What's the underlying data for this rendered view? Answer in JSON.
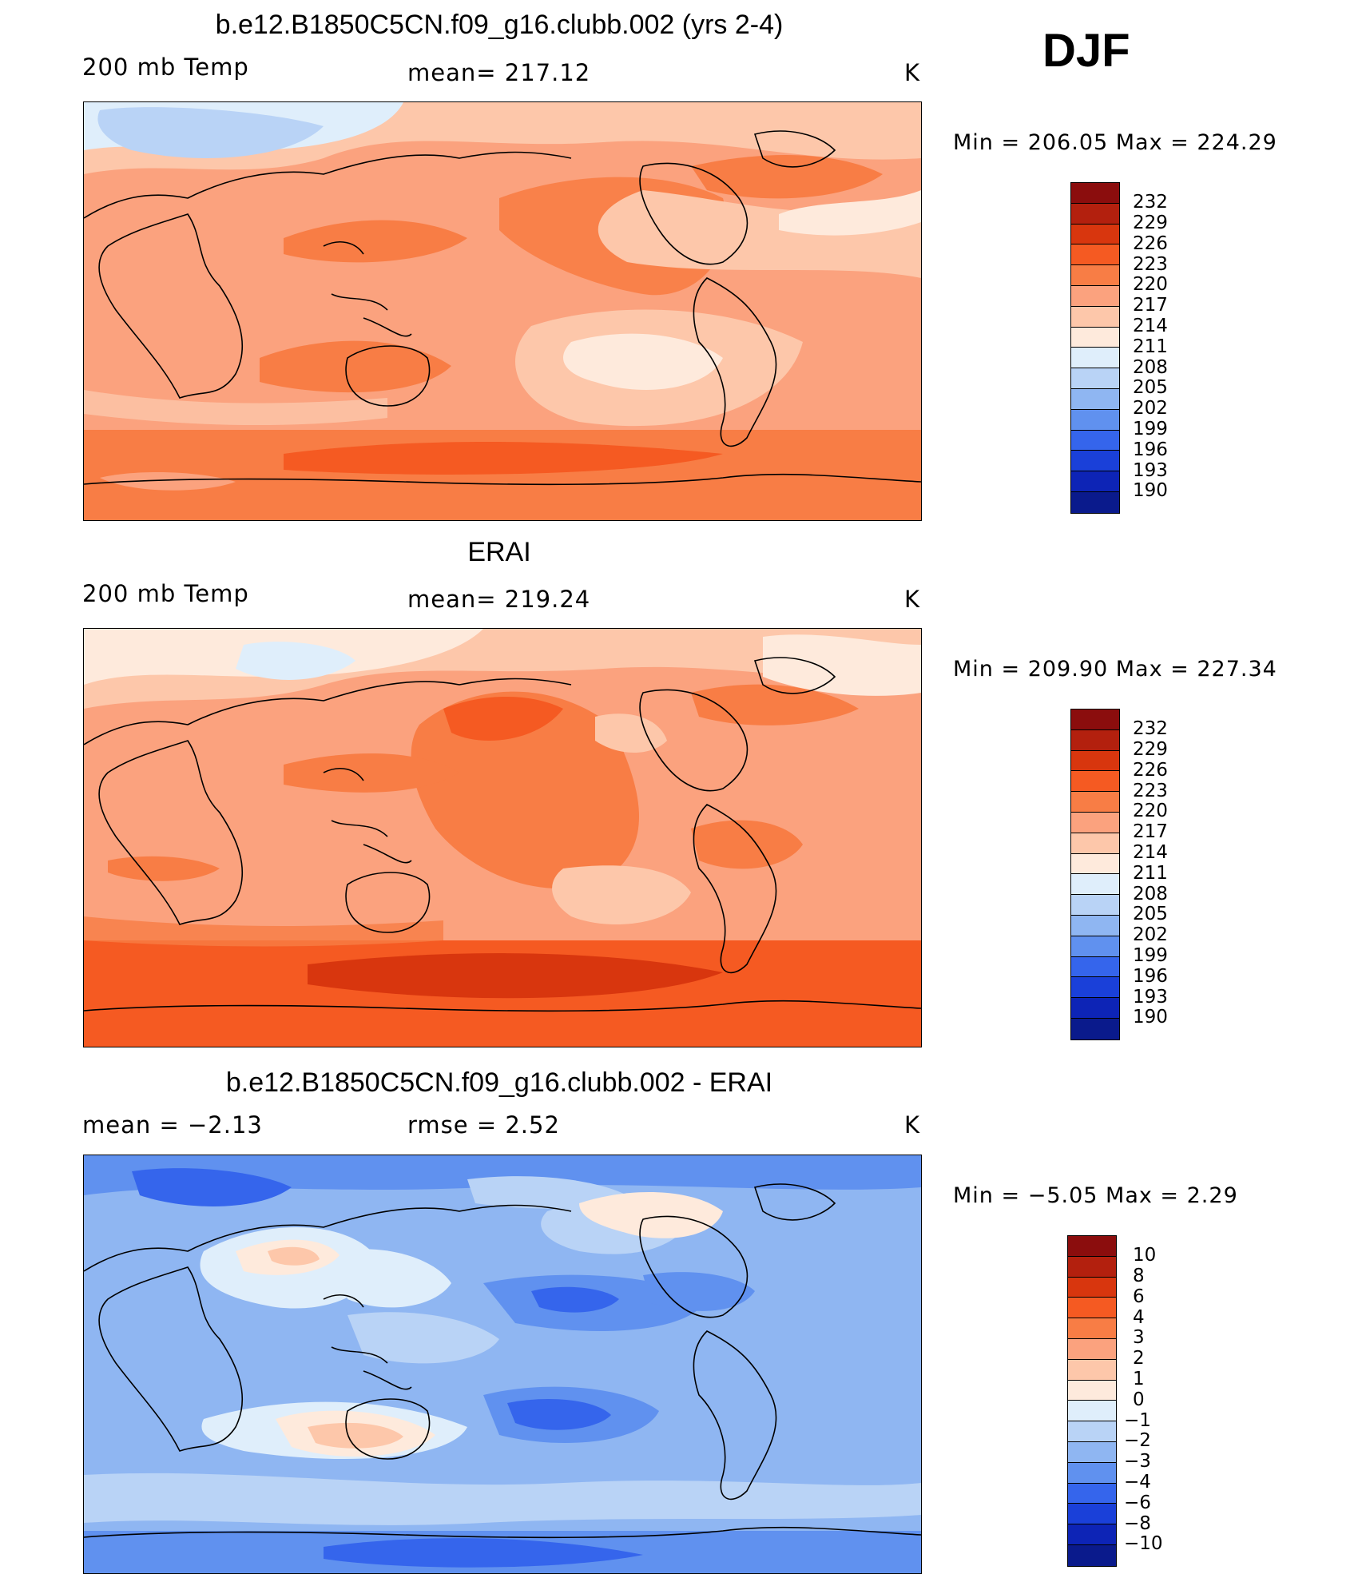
{
  "season": "DJF",
  "units": "K",
  "panels": [
    {
      "id": "model",
      "title": "b.e12.B1850C5CN.f09_g16.clubb.002 (yrs 2-4)",
      "left_label": "200 mb Temp",
      "center_label": "mean=  217.12",
      "right_label": "K",
      "minmax": "Min  =  206.05  Max  =  224.29",
      "colorbar": {
        "ticks": [
          "232",
          "229",
          "226",
          "223",
          "220",
          "217",
          "214",
          "211",
          "208",
          "205",
          "202",
          "199",
          "196",
          "193",
          "190"
        ],
        "colors": [
          "#8b0d0d",
          "#b3200e",
          "#d8360e",
          "#f55a22",
          "#f87d45",
          "#fba27e",
          "#fdc7aa",
          "#feeadc",
          "#dfeefb",
          "#b9d3f6",
          "#8fb6f2",
          "#6091ef",
          "#3565ec",
          "#1a40d9",
          "#0d24b6",
          "#0a1a8c"
        ]
      },
      "bands": [
        "#fba27e",
        "#f87d45",
        "#fdc7aa",
        "#feeadc",
        "#dfeefb",
        "#b9d3f6"
      ]
    },
    {
      "id": "obs",
      "title": "ERAI",
      "left_label": "200 mb Temp",
      "center_label": "mean=  219.24",
      "right_label": "K",
      "minmax": "Min  =  209.90  Max  =  227.34",
      "colorbar": {
        "ticks": [
          "232",
          "229",
          "226",
          "223",
          "220",
          "217",
          "214",
          "211",
          "208",
          "205",
          "202",
          "199",
          "196",
          "193",
          "190"
        ],
        "colors": [
          "#8b0d0d",
          "#b3200e",
          "#d8360e",
          "#f55a22",
          "#f87d45",
          "#fba27e",
          "#fdc7aa",
          "#feeadc",
          "#dfeefb",
          "#b9d3f6",
          "#8fb6f2",
          "#6091ef",
          "#3565ec",
          "#1a40d9",
          "#0d24b6",
          "#0a1a8c"
        ]
      },
      "bands": [
        "#fba27e",
        "#f87d45",
        "#fdc7aa",
        "#f55a22",
        "#d8360e",
        "#feeadc"
      ]
    },
    {
      "id": "diff",
      "title": "b.e12.B1850C5CN.f09_g16.clubb.002 - ERAI",
      "left_label": "mean =    −2.13",
      "center_label": "rmse =     2.52",
      "right_label": "K",
      "minmax": "Min  =    −5.05  Max  =      2.29",
      "colorbar": {
        "ticks": [
          "10",
          "8",
          "6",
          "4",
          "3",
          "2",
          "1",
          "0",
          "−1",
          "−2",
          "−3",
          "−4",
          "−6",
          "−8",
          "−10"
        ],
        "colors": [
          "#8b0d0d",
          "#b3200e",
          "#d8360e",
          "#f55a22",
          "#f87d45",
          "#fba27e",
          "#fdc7aa",
          "#feeadc",
          "#dfeefb",
          "#b9d3f6",
          "#8fb6f2",
          "#6091ef",
          "#3565ec",
          "#1a40d9",
          "#0d24b6",
          "#0a1a8c"
        ]
      },
      "bands": [
        "#8fb6f2",
        "#6091ef",
        "#b9d3f6",
        "#dfeefb",
        "#feeadc",
        "#3565ec"
      ]
    }
  ]
}
